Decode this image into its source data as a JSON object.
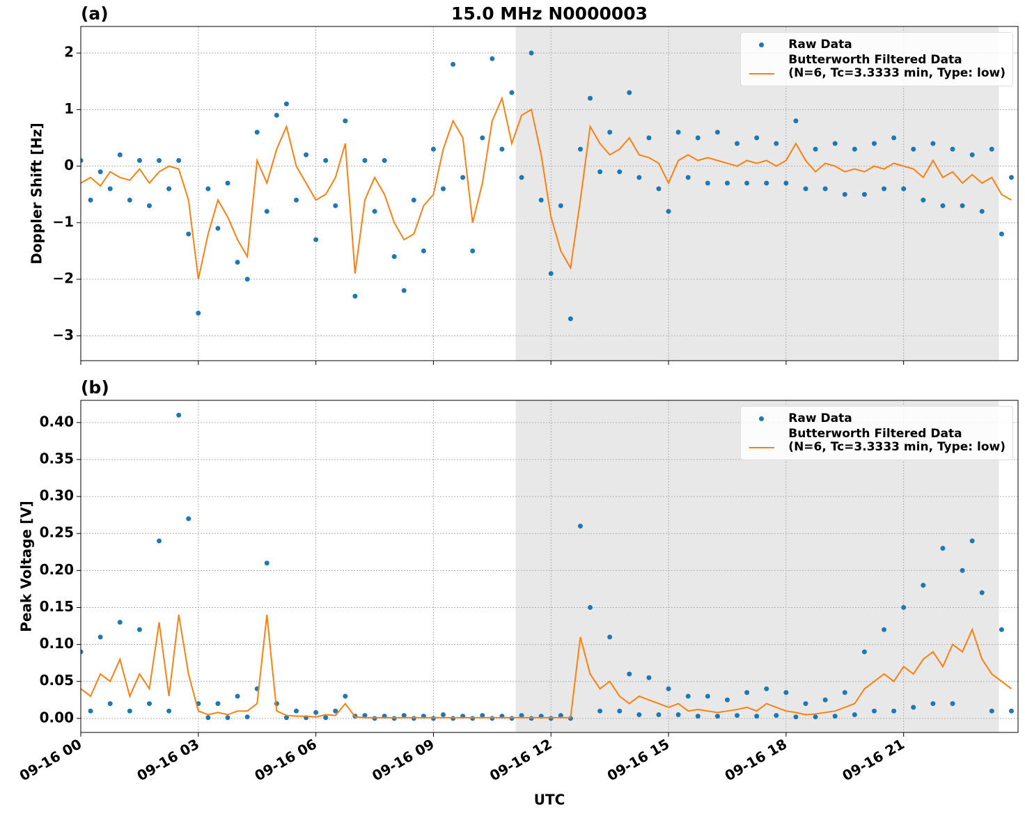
{
  "chart_data": [
    {
      "type": "scatter-line",
      "title": "15.0 MHz N0000003",
      "panel_label": "(a)",
      "ylabel": "Doppler Shift [Hz]",
      "x": [
        0,
        0.25,
        0.5,
        0.75,
        1,
        1.25,
        1.5,
        1.75,
        2,
        2.25,
        2.5,
        2.75,
        3,
        3.25,
        3.5,
        3.75,
        4,
        4.25,
        4.5,
        4.75,
        5,
        5.25,
        5.5,
        5.75,
        6,
        6.25,
        6.5,
        6.75,
        7,
        7.25,
        7.5,
        7.75,
        8,
        8.25,
        8.5,
        8.75,
        9,
        9.25,
        9.5,
        9.75,
        10,
        10.25,
        10.5,
        10.75,
        11,
        11.25,
        11.5,
        11.75,
        12,
        12.25,
        12.5,
        12.75,
        13,
        13.25,
        13.5,
        13.75,
        14,
        14.25,
        14.5,
        14.75,
        15,
        15.25,
        15.5,
        15.75,
        16,
        16.25,
        16.5,
        16.75,
        17,
        17.25,
        17.5,
        17.75,
        18,
        18.25,
        18.5,
        18.75,
        19,
        19.25,
        19.5,
        19.75,
        20,
        20.25,
        20.5,
        20.75,
        21,
        21.25,
        21.5,
        21.75,
        22,
        22.25,
        22.5,
        22.75,
        23,
        23.25,
        23.5,
        23.75
      ],
      "series": [
        {
          "name": "Raw Data",
          "color": "#1f77b4",
          "style": "dots",
          "values": [
            0.1,
            -0.6,
            -0.1,
            -0.4,
            0.2,
            -0.6,
            0.1,
            -0.7,
            0.1,
            -0.4,
            0.1,
            -1.2,
            -2.6,
            -0.4,
            -1.1,
            -0.3,
            -1.7,
            -2.0,
            0.6,
            -0.8,
            0.9,
            1.1,
            -0.6,
            0.2,
            -1.3,
            0.1,
            -0.7,
            0.8,
            -2.3,
            0.1,
            -0.8,
            0.1,
            -1.6,
            -2.2,
            -0.6,
            -1.5,
            0.3,
            -0.4,
            1.8,
            -0.2,
            -1.5,
            0.5,
            1.9,
            0.3,
            1.3,
            -0.2,
            2.0,
            -0.6,
            -1.9,
            -0.7,
            -2.7,
            0.3,
            1.2,
            -0.1,
            0.6,
            -0.1,
            1.3,
            -0.2,
            0.5,
            -0.4,
            -0.8,
            0.6,
            -0.2,
            0.5,
            -0.3,
            0.6,
            -0.3,
            0.4,
            -0.3,
            0.5,
            -0.3,
            0.4,
            -0.3,
            0.8,
            -0.4,
            0.3,
            -0.4,
            0.4,
            -0.5,
            0.3,
            -0.5,
            0.4,
            -0.4,
            0.5,
            -0.4,
            0.3,
            -0.6,
            0.4,
            -0.7,
            0.3,
            -0.7,
            0.2,
            -0.8,
            0.3,
            -1.2,
            -0.2
          ]
        },
        {
          "name": "Butterworth Filtered Data\n(N=6, Tc=3.3333 min, Type: low)",
          "color": "#ff7f0e",
          "style": "line",
          "values": [
            -0.3,
            -0.2,
            -0.35,
            -0.1,
            -0.2,
            -0.25,
            -0.05,
            -0.3,
            -0.1,
            0,
            -0.05,
            -0.6,
            -2.0,
            -1.2,
            -0.6,
            -0.9,
            -1.3,
            -1.6,
            0.1,
            -0.3,
            0.3,
            0.7,
            0.0,
            -0.3,
            -0.6,
            -0.5,
            -0.2,
            0.4,
            -1.9,
            -0.6,
            -0.2,
            -0.5,
            -1.0,
            -1.3,
            -1.2,
            -0.7,
            -0.5,
            0.3,
            0.8,
            0.5,
            -1.0,
            -0.3,
            0.8,
            1.2,
            0.4,
            0.9,
            1.0,
            0.2,
            -0.9,
            -1.5,
            -1.8,
            -0.6,
            0.7,
            0.4,
            0.2,
            0.3,
            0.5,
            0.2,
            0.15,
            0.05,
            -0.3,
            0.1,
            0.2,
            0.1,
            0.15,
            0.1,
            0.05,
            0.0,
            0.1,
            0.05,
            0.1,
            0.0,
            0.1,
            0.4,
            0.1,
            -0.1,
            0.05,
            0.0,
            -0.1,
            -0.05,
            -0.1,
            0.0,
            -0.05,
            0.05,
            0.0,
            -0.05,
            -0.2,
            0.1,
            -0.2,
            -0.1,
            -0.3,
            -0.15,
            -0.3,
            -0.2,
            -0.5,
            -0.6
          ]
        }
      ],
      "xlim": [
        0,
        23.92
      ],
      "xticks": [
        0,
        3,
        6,
        9,
        12,
        15,
        18,
        21
      ],
      "ylim": [
        -3.44,
        2.47
      ],
      "yticks": [
        {
          "value": -3,
          "label": "−3"
        },
        {
          "value": -2,
          "label": "−2"
        },
        {
          "value": -1,
          "label": "−1"
        },
        0,
        1,
        2
      ],
      "shaded_span": [
        11.1,
        23.43
      ],
      "grid": true,
      "legend": "upper right"
    },
    {
      "type": "scatter-line",
      "panel_label": "(b)",
      "ylabel": "Peak Voltage [V]",
      "xlabel": "UTC",
      "x": [
        0,
        0.25,
        0.5,
        0.75,
        1,
        1.25,
        1.5,
        1.75,
        2,
        2.25,
        2.5,
        2.75,
        3,
        3.25,
        3.5,
        3.75,
        4,
        4.25,
        4.5,
        4.75,
        5,
        5.25,
        5.5,
        5.75,
        6,
        6.25,
        6.5,
        6.75,
        7,
        7.25,
        7.5,
        7.75,
        8,
        8.25,
        8.5,
        8.75,
        9,
        9.25,
        9.5,
        9.75,
        10,
        10.25,
        10.5,
        10.75,
        11,
        11.25,
        11.5,
        11.75,
        12,
        12.25,
        12.5,
        12.75,
        13,
        13.25,
        13.5,
        13.75,
        14,
        14.25,
        14.5,
        14.75,
        15,
        15.25,
        15.5,
        15.75,
        16,
        16.25,
        16.5,
        16.75,
        17,
        17.25,
        17.5,
        17.75,
        18,
        18.25,
        18.5,
        18.75,
        19,
        19.25,
        19.5,
        19.75,
        20,
        20.25,
        20.5,
        20.75,
        21,
        21.25,
        21.5,
        21.75,
        22,
        22.25,
        22.5,
        22.75,
        23,
        23.25,
        23.5,
        23.75
      ],
      "series": [
        {
          "name": "Raw Data",
          "color": "#1f77b4",
          "style": "dots",
          "values": [
            0.09,
            0.01,
            0.11,
            0.02,
            0.13,
            0.01,
            0.12,
            0.02,
            0.24,
            0.01,
            0.41,
            0.27,
            0.02,
            0.001,
            0.02,
            0.001,
            0.03,
            0.002,
            0.04,
            0.21,
            0.02,
            0.001,
            0.01,
            0.001,
            0.008,
            0.001,
            0.01,
            0.03,
            0.003,
            0.004,
            0.0,
            0.003,
            0.0,
            0.004,
            0.0,
            0.003,
            0.0,
            0.005,
            0.0,
            0.003,
            0.0,
            0.004,
            0.0,
            0.003,
            0.0,
            0.004,
            0.0,
            0.003,
            0.0,
            0.004,
            0.0,
            0.26,
            0.15,
            0.01,
            0.11,
            0.01,
            0.06,
            0.005,
            0.055,
            0.005,
            0.04,
            0.005,
            0.03,
            0.003,
            0.03,
            0.003,
            0.025,
            0.004,
            0.035,
            0.003,
            0.04,
            0.004,
            0.035,
            0.002,
            0.02,
            0.002,
            0.025,
            0.003,
            0.035,
            0.005,
            0.09,
            0.01,
            0.12,
            0.01,
            0.15,
            0.015,
            0.18,
            0.02,
            0.23,
            0.02,
            0.2,
            0.24,
            0.17,
            0.01,
            0.12,
            0.01
          ]
        },
        {
          "name": "Butterworth Filtered Data\n(N=6, Tc=3.3333 min, Type: low)",
          "color": "#ff7f0e",
          "style": "line",
          "values": [
            0.04,
            0.03,
            0.06,
            0.05,
            0.08,
            0.03,
            0.06,
            0.04,
            0.13,
            0.03,
            0.14,
            0.06,
            0.01,
            0.005,
            0.008,
            0.005,
            0.01,
            0.01,
            0.02,
            0.14,
            0.01,
            0.004,
            0.003,
            0.003,
            0.002,
            0.005,
            0.004,
            0.02,
            0.002,
            0.001,
            0.001,
            0.001,
            0.001,
            0.001,
            0.001,
            0.001,
            0.001,
            0.001,
            0.001,
            0.001,
            0.001,
            0.001,
            0.001,
            0.001,
            0.001,
            0.001,
            0.001,
            0.001,
            0.001,
            0.001,
            0.001,
            0.11,
            0.06,
            0.04,
            0.05,
            0.03,
            0.02,
            0.03,
            0.025,
            0.02,
            0.015,
            0.02,
            0.01,
            0.012,
            0.01,
            0.008,
            0.01,
            0.012,
            0.015,
            0.01,
            0.02,
            0.015,
            0.01,
            0.008,
            0.005,
            0.006,
            0.008,
            0.01,
            0.015,
            0.02,
            0.04,
            0.05,
            0.06,
            0.05,
            0.07,
            0.06,
            0.08,
            0.09,
            0.07,
            0.1,
            0.09,
            0.12,
            0.08,
            0.06,
            0.05,
            0.04
          ]
        }
      ],
      "xlim": [
        0,
        23.92
      ],
      "xticks": [
        {
          "value": 0,
          "label": "09-16 00"
        },
        {
          "value": 3,
          "label": "09-16 03"
        },
        {
          "value": 6,
          "label": "09-16 06"
        },
        {
          "value": 9,
          "label": "09-16 09"
        },
        {
          "value": 12,
          "label": "09-16 12"
        },
        {
          "value": 15,
          "label": "09-16 15"
        },
        {
          "value": 18,
          "label": "09-16 18"
        },
        {
          "value": 21,
          "label": "09-16 21"
        }
      ],
      "ylim": [
        -0.019,
        0.43
      ],
      "yticks": [
        {
          "value": 0,
          "label": "0.00"
        },
        {
          "value": 0.05,
          "label": "0.05"
        },
        {
          "value": 0.1,
          "label": "0.10"
        },
        {
          "value": 0.15,
          "label": "0.15"
        },
        {
          "value": 0.2,
          "label": "0.20"
        },
        {
          "value": 0.25,
          "label": "0.25"
        },
        {
          "value": 0.3,
          "label": "0.30"
        },
        {
          "value": 0.35,
          "label": "0.35"
        },
        {
          "value": 0.4,
          "label": "0.40"
        }
      ],
      "shaded_span": [
        11.1,
        23.43
      ],
      "grid": true,
      "legend": "upper right"
    }
  ]
}
